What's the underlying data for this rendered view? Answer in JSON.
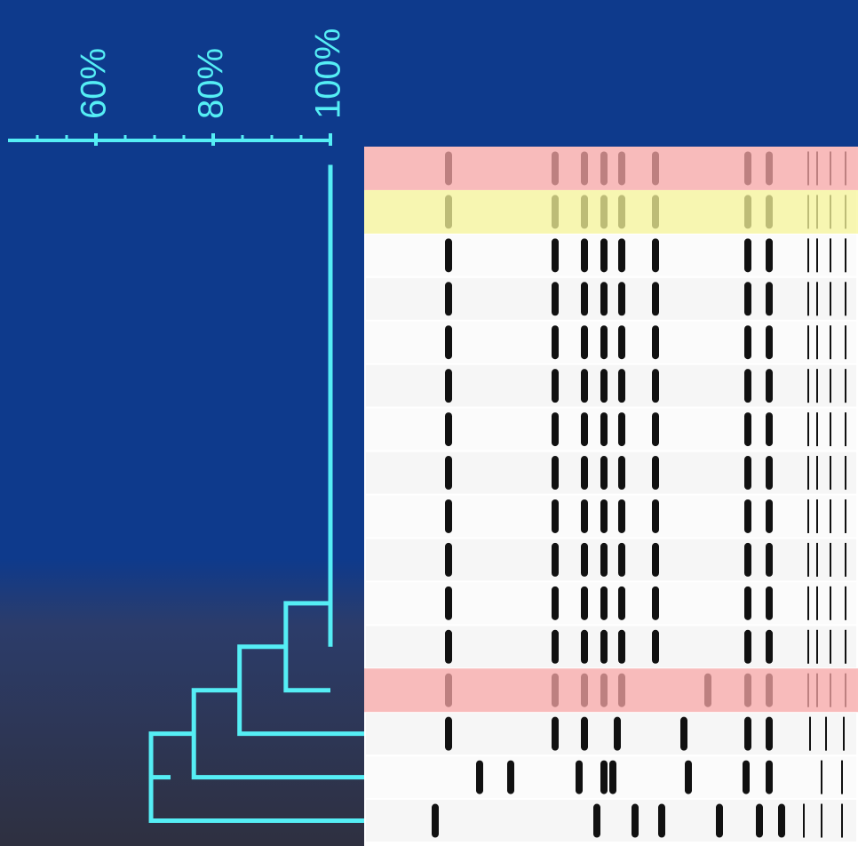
{
  "chart_data": {
    "type": "dendrogram",
    "xlim": [
      45,
      100
    ],
    "xticks": [
      {
        "value": 60,
        "label": "60%"
      },
      {
        "value": 80,
        "label": "80%"
      },
      {
        "value": 100,
        "label": "100%"
      }
    ],
    "minor_xticks": [
      50,
      55,
      65,
      70,
      75,
      85,
      90,
      95
    ],
    "leaves": 16,
    "clusters": [
      {
        "height": 100,
        "size": 12
      },
      {
        "height": 92.4
      },
      {
        "height": 84.5
      },
      {
        "height": 76.7
      },
      {
        "height": 69.4
      }
    ],
    "color": "#55eef5",
    "highlights": [
      {
        "lane": 0,
        "color": "#f7a6a6"
      },
      {
        "lane": 1,
        "color": "#f7f59a"
      },
      {
        "lane": 12,
        "color": "#f7a6a6"
      }
    ]
  }
}
